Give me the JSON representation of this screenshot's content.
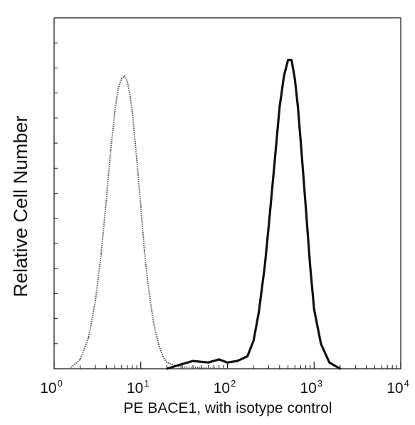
{
  "chart_data": {
    "type": "area",
    "xscale": "log",
    "xlim": [
      1,
      10000
    ],
    "ylim": [
      0,
      100
    ],
    "xlabel": "PE  BACE1,  with isotype control",
    "ylabel": "Relative Cell Number",
    "xticks": [
      {
        "value": 1,
        "base": "10",
        "exp": "0"
      },
      {
        "value": 10,
        "base": "10",
        "exp": "1"
      },
      {
        "value": 100,
        "base": "10",
        "exp": "2"
      },
      {
        "value": 1000,
        "base": "10",
        "exp": "3"
      },
      {
        "value": 10000,
        "base": "10",
        "exp": "4"
      }
    ],
    "grid": false,
    "series": [
      {
        "style": "dotted-gray",
        "x": [
          1.5,
          2.0,
          2.5,
          3.0,
          3.5,
          4.0,
          4.5,
          5.0,
          5.5,
          6.0,
          6.5,
          7.0,
          7.5,
          8.0,
          9.0,
          10,
          11,
          12,
          14,
          16,
          18,
          20,
          25,
          30,
          40,
          60,
          100
        ],
        "y": [
          0,
          3,
          10,
          22,
          37,
          54,
          70,
          82,
          90,
          93,
          94,
          92,
          88,
          82,
          67,
          52,
          38,
          28,
          15,
          8,
          4,
          2,
          1,
          0.5,
          0.5,
          0.2,
          0
        ]
      },
      {
        "style": "solid-black",
        "x": [
          20,
          30,
          40,
          60,
          80,
          100,
          130,
          170,
          200,
          230,
          270,
          300,
          350,
          400,
          450,
          500,
          550,
          600,
          650,
          700,
          800,
          900,
          1000,
          1200,
          1500,
          2000
        ],
        "y": [
          0,
          1.5,
          2.5,
          2,
          3,
          2,
          2.5,
          4,
          9,
          18,
          33,
          46,
          66,
          84,
          94,
          99,
          99,
          93,
          84,
          73,
          52,
          33,
          19,
          8,
          2,
          0
        ]
      }
    ]
  }
}
